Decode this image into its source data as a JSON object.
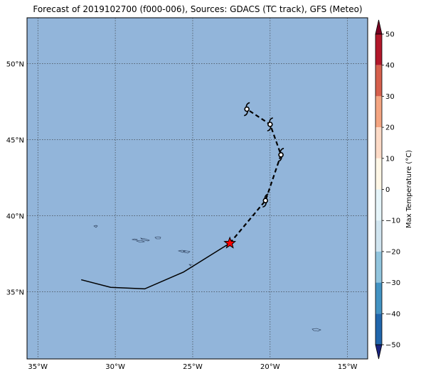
{
  "title": "Forecast of 2019102700 (f000-006), Sources: GDACS (TC track), GFS (Meteo)",
  "map": {
    "lon_range": [
      -35.7,
      -13.7
    ],
    "lat_range": [
      30.6,
      53.0
    ],
    "lon_ticks": [
      {
        "value": -35,
        "label": "35°W"
      },
      {
        "value": -30,
        "label": "30°W"
      },
      {
        "value": -25,
        "label": "25°W"
      },
      {
        "value": -20,
        "label": "20°W"
      },
      {
        "value": -15,
        "label": "15°W"
      }
    ],
    "lat_ticks": [
      {
        "value": 35,
        "label": "35°N"
      },
      {
        "value": 40,
        "label": "40°N"
      },
      {
        "value": 45,
        "label": "45°N"
      },
      {
        "value": 50,
        "label": "50°N"
      }
    ],
    "ocean_color": "#92b5da",
    "gridlines": "dotted"
  },
  "track": {
    "past": [
      [
        -32.2,
        35.8
      ],
      [
        -30.3,
        35.3
      ],
      [
        -28.1,
        35.2
      ],
      [
        -25.6,
        36.3
      ],
      [
        -22.6,
        38.2
      ]
    ],
    "forecast": [
      [
        -22.6,
        38.2
      ],
      [
        -20.3,
        41.0
      ],
      [
        -19.3,
        44.0
      ],
      [
        -20.0,
        46.0
      ],
      [
        -21.5,
        47.0
      ]
    ],
    "current_position": [
      -22.6,
      38.2
    ],
    "symbols": [
      [
        -20.3,
        41.0
      ],
      [
        -19.3,
        44.0
      ],
      [
        -20.0,
        46.0
      ],
      [
        -21.5,
        47.0
      ]
    ],
    "star_color": "#ff0000"
  },
  "colorbar": {
    "label": "Max Temperature (°C)",
    "ticks": [
      "50",
      "40",
      "30",
      "20",
      "10",
      "0",
      "−10",
      "−20",
      "−30",
      "−40",
      "−50"
    ],
    "colors": [
      "#7a0022",
      "#b2182b",
      "#d6604d",
      "#f4a582",
      "#fddbc7",
      "#fff7e6",
      "#e6f5fa",
      "#d1e5f0",
      "#92c5de",
      "#4393c3",
      "#2166ac",
      "#1a237e"
    ]
  }
}
